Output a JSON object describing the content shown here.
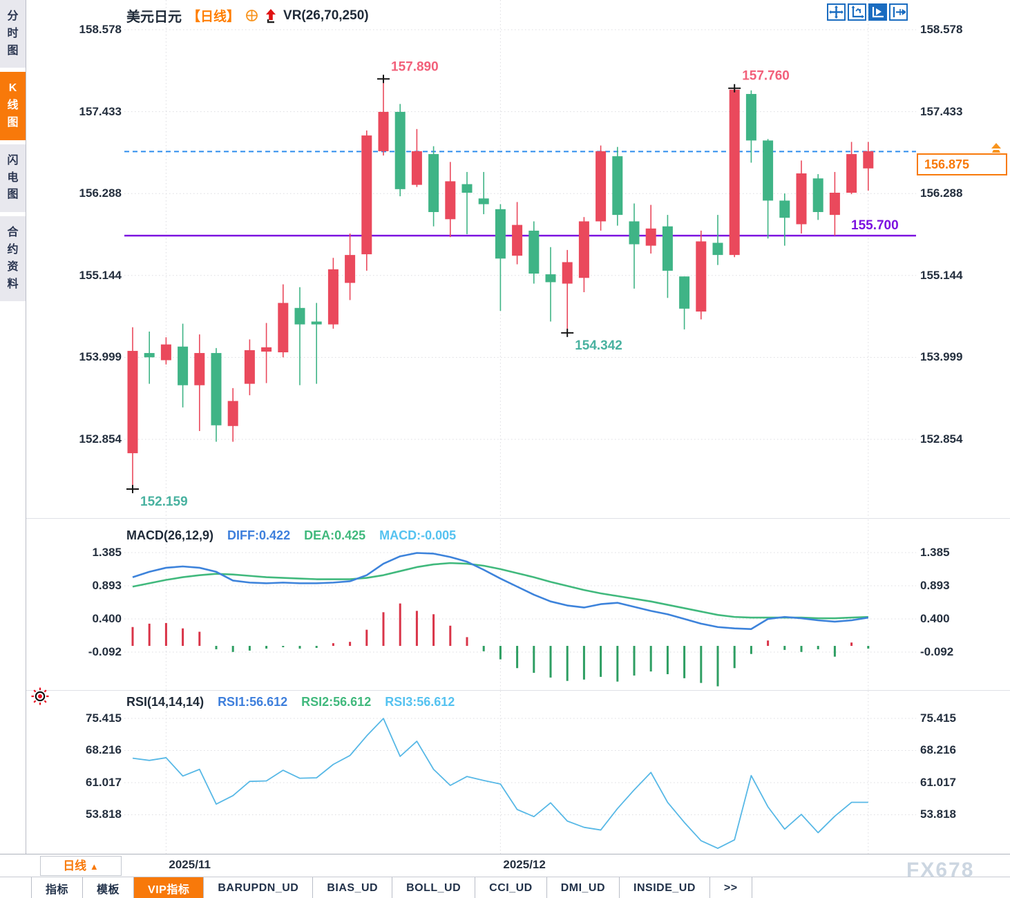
{
  "sidebar": {
    "tabs": [
      {
        "label": "分时图",
        "active": false
      },
      {
        "label": "K线图",
        "active": true
      },
      {
        "label": "闪电图",
        "active": false
      },
      {
        "label": "合约资料",
        "active": false
      }
    ]
  },
  "header": {
    "symbol": "美元日元",
    "period_tag": "【日线】",
    "indicator_label": "VR(26,70,250)"
  },
  "toolbar": {
    "icons": [
      "pan-tool-icon",
      "axis-scale-icon",
      "auto-scroll-icon",
      "jump-latest-icon"
    ]
  },
  "price_marker": {
    "value": "156.875"
  },
  "macd_header": {
    "title": "MACD(26,12,9)",
    "diff_label": "DIFF:0.422",
    "dea_label": "DEA:0.425",
    "macd_label": "MACD:-0.005"
  },
  "rsi_header": {
    "title": "RSI(14,14,14)",
    "rsi1_label": "RSI1:56.612",
    "rsi2_label": "RSI2:56.612",
    "rsi3_label": "RSI3:56.612"
  },
  "bottom": {
    "period_button": {
      "label": "日线",
      "arrow": "▲"
    },
    "months": [
      "2025/11",
      "2025/12"
    ],
    "tabs": [
      {
        "label": "指标",
        "active": false
      },
      {
        "label": "模板",
        "active": false
      },
      {
        "label": "VIP指标",
        "active": true
      },
      {
        "label": "BARUPDN_UD",
        "active": false
      },
      {
        "label": "BIAS_UD",
        "active": false
      },
      {
        "label": "BOLL_UD",
        "active": false
      },
      {
        "label": "CCI_UD",
        "active": false
      },
      {
        "label": "DMI_UD",
        "active": false
      },
      {
        "label": "INSIDE_UD",
        "active": false
      },
      {
        "label": ">>",
        "active": false
      }
    ],
    "watermark": "FX678"
  },
  "colors": {
    "up": "#ea495c",
    "down": "#3fb486",
    "hist_up": "#d93448",
    "hist_down": "#2e9e62",
    "diff_line": "#3d83db",
    "dea_line": "#41b97d",
    "rsi_line": "#57b8e6",
    "current_price_line": "#2f8ded",
    "support_line": "#7c0fe0",
    "accent_orange": "#f8790a",
    "grid": "#dcdce0",
    "annotation_pink": "#f2607a",
    "annotation_teal": "#49b2a0"
  },
  "chart_data": {
    "type": "candlestick",
    "title": "美元日元 日线 (USD/JPY daily with MACD & RSI)",
    "y_ticks_price": [
      158.578,
      157.433,
      156.288,
      155.144,
      153.999,
      152.854
    ],
    "current_price": 156.875,
    "support_line": {
      "value": 155.7,
      "label": "155.700"
    },
    "month_ticks": [
      {
        "label": "2025/11",
        "candle": 2
      },
      {
        "label": "2025/12",
        "candle": 22
      },
      {
        "label": "",
        "candle": 44
      }
    ],
    "candles_ohlc": [
      [
        152.66,
        154.42,
        152.159,
        154.09
      ],
      [
        154.06,
        154.36,
        153.63,
        154.0
      ],
      [
        153.96,
        154.28,
        153.9,
        154.18
      ],
      [
        154.15,
        154.47,
        153.3,
        153.61
      ],
      [
        153.61,
        154.32,
        152.97,
        154.06
      ],
      [
        154.06,
        154.13,
        152.82,
        153.05
      ],
      [
        153.04,
        153.57,
        152.82,
        153.39
      ],
      [
        153.63,
        154.25,
        153.47,
        154.1
      ],
      [
        154.08,
        154.48,
        153.64,
        154.14
      ],
      [
        154.07,
        155.02,
        154.0,
        154.76
      ],
      [
        154.69,
        154.98,
        153.61,
        154.46
      ],
      [
        154.5,
        154.76,
        153.63,
        154.46
      ],
      [
        154.46,
        155.39,
        154.4,
        155.23
      ],
      [
        155.04,
        155.73,
        154.8,
        155.43
      ],
      [
        155.44,
        157.17,
        155.21,
        157.1
      ],
      [
        156.88,
        157.89,
        156.82,
        157.43
      ],
      [
        157.43,
        157.54,
        156.25,
        156.35
      ],
      [
        156.41,
        157.19,
        156.38,
        156.88
      ],
      [
        156.84,
        156.95,
        155.83,
        156.03
      ],
      [
        155.93,
        156.73,
        155.68,
        156.46
      ],
      [
        156.42,
        156.59,
        155.72,
        156.3
      ],
      [
        156.22,
        156.59,
        156.0,
        156.14
      ],
      [
        156.07,
        156.14,
        154.65,
        155.38
      ],
      [
        155.42,
        156.17,
        155.3,
        155.85
      ],
      [
        155.77,
        155.9,
        155.03,
        155.17
      ],
      [
        155.16,
        155.54,
        154.5,
        155.05
      ],
      [
        155.03,
        155.5,
        154.342,
        155.33
      ],
      [
        155.11,
        155.96,
        154.91,
        155.9
      ],
      [
        155.9,
        156.96,
        155.77,
        156.88
      ],
      [
        156.81,
        156.94,
        155.84,
        155.99
      ],
      [
        155.9,
        156.15,
        154.96,
        155.58
      ],
      [
        155.56,
        156.13,
        155.45,
        155.8
      ],
      [
        155.83,
        155.99,
        154.83,
        155.21
      ],
      [
        155.13,
        155.13,
        154.39,
        154.68
      ],
      [
        154.64,
        155.77,
        154.53,
        155.62
      ],
      [
        155.6,
        155.99,
        155.29,
        155.43
      ],
      [
        155.43,
        157.76,
        155.4,
        157.74
      ],
      [
        157.68,
        157.73,
        156.72,
        157.03
      ],
      [
        157.03,
        157.05,
        155.66,
        156.19
      ],
      [
        156.19,
        156.29,
        155.56,
        155.95
      ],
      [
        155.86,
        156.75,
        155.73,
        156.57
      ],
      [
        156.5,
        156.56,
        155.92,
        156.03
      ],
      [
        155.99,
        156.59,
        155.7,
        156.3
      ],
      [
        156.3,
        157.01,
        156.28,
        156.84
      ],
      [
        156.64,
        157.01,
        156.33,
        156.88
      ]
    ],
    "annotations": [
      {
        "text": "152.159",
        "candle": 0,
        "price": 152.159,
        "side": "low",
        "color": "#49b2a0"
      },
      {
        "text": "157.890",
        "candle": 15,
        "price": 157.89,
        "side": "high",
        "color": "#f2607a"
      },
      {
        "text": "154.342",
        "candle": 26,
        "price": 154.342,
        "side": "low",
        "color": "#49b2a0"
      },
      {
        "text": "157.760",
        "candle": 36,
        "price": 157.76,
        "side": "high",
        "color": "#f2607a"
      }
    ],
    "macd": {
      "params": "26,12,9",
      "diff": 0.422,
      "dea": 0.425,
      "macd": -0.005,
      "y_ticks": [
        1.385,
        0.893,
        0.4,
        -0.092
      ],
      "diff_series": [
        1.02,
        1.1,
        1.16,
        1.18,
        1.16,
        1.1,
        0.97,
        0.94,
        0.93,
        0.94,
        0.93,
        0.93,
        0.94,
        0.96,
        1.05,
        1.22,
        1.33,
        1.38,
        1.37,
        1.32,
        1.25,
        1.13,
        1.0,
        0.88,
        0.76,
        0.66,
        0.6,
        0.57,
        0.62,
        0.64,
        0.58,
        0.52,
        0.47,
        0.4,
        0.33,
        0.28,
        0.26,
        0.25,
        0.4,
        0.43,
        0.41,
        0.38,
        0.36,
        0.38,
        0.42
      ],
      "dea_series": [
        0.88,
        0.93,
        0.98,
        1.02,
        1.05,
        1.07,
        1.06,
        1.04,
        1.02,
        1.01,
        1.0,
        0.99,
        0.99,
        0.99,
        1.01,
        1.05,
        1.11,
        1.17,
        1.21,
        1.23,
        1.22,
        1.19,
        1.14,
        1.08,
        1.02,
        0.95,
        0.89,
        0.83,
        0.78,
        0.74,
        0.7,
        0.66,
        0.61,
        0.56,
        0.51,
        0.46,
        0.43,
        0.42,
        0.42,
        0.42,
        0.42,
        0.41,
        0.41,
        0.42,
        0.43
      ],
      "hist_series": [
        0.28,
        0.33,
        0.34,
        0.26,
        0.21,
        -0.05,
        -0.09,
        -0.07,
        -0.04,
        -0.02,
        -0.04,
        -0.03,
        0.04,
        0.06,
        0.24,
        0.5,
        0.63,
        0.52,
        0.47,
        0.3,
        0.13,
        -0.08,
        -0.2,
        -0.33,
        -0.4,
        -0.47,
        -0.52,
        -0.5,
        -0.46,
        -0.53,
        -0.44,
        -0.38,
        -0.42,
        -0.48,
        -0.55,
        -0.6,
        -0.33,
        -0.12,
        0.08,
        -0.06,
        -0.09,
        -0.05,
        -0.16,
        0.05,
        -0.04
      ]
    },
    "rsi": {
      "params": "14,14,14",
      "rsi1": 56.612,
      "rsi2": 56.612,
      "rsi3": 56.612,
      "y_ticks": [
        75.415,
        68.216,
        61.017,
        53.818
      ],
      "values": [
        66.5,
        66.0,
        66.6,
        62.5,
        64.0,
        56.2,
        58.1,
        61.3,
        61.4,
        63.8,
        62.0,
        62.1,
        65.1,
        67.1,
        71.5,
        75.4,
        66.9,
        70.3,
        64.0,
        60.4,
        62.4,
        61.5,
        60.7,
        55.0,
        53.4,
        56.5,
        52.4,
        51.0,
        50.4,
        55.2,
        59.4,
        63.3,
        56.6,
        52.1,
        48.0,
        46.3,
        48.2,
        62.6,
        55.6,
        50.6,
        53.9,
        49.8,
        53.5,
        56.6,
        56.6
      ]
    }
  }
}
